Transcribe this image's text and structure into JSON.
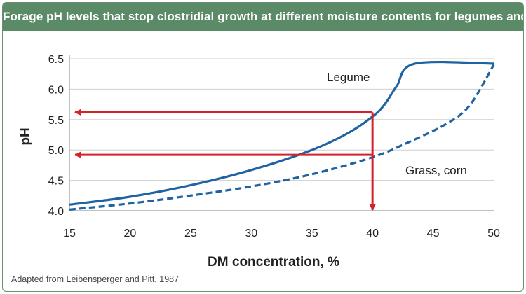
{
  "title": "Forage pH levels that stop clostridial growth at different moisture contents for legumes and grasses",
  "source": "Adapted from Leibensperger and Pitt, 1987",
  "colors": {
    "banner": "#5b8a67",
    "legume_line": "#1f63a3",
    "grass_line": "#1f63a3",
    "arrows": "#d2232a",
    "grid": "#cfcfcf"
  },
  "chart_data": {
    "type": "line",
    "xlabel": "DM concentration, %",
    "ylabel": "pH",
    "xlim": [
      15,
      50
    ],
    "ylim": [
      4.0,
      6.5
    ],
    "x_ticks": [
      "15",
      "20",
      "25",
      "30",
      "35",
      "40",
      "45",
      "50"
    ],
    "y_ticks": [
      "4.0",
      "4.5",
      "5.0",
      "5.5",
      "6.0",
      "6.5"
    ],
    "grid": "horizontal",
    "series": [
      {
        "name": "Legume",
        "style": "solid",
        "x": [
          15,
          20,
          25,
          30,
          35,
          38,
          40,
          41,
          42,
          43.5,
          50
        ],
        "y": [
          4.1,
          4.23,
          4.42,
          4.67,
          5.0,
          5.28,
          5.55,
          5.75,
          6.05,
          6.42,
          6.42
        ]
      },
      {
        "name": "Grass, corn",
        "style": "dashed",
        "x": [
          15,
          20,
          25,
          30,
          35,
          40,
          43,
          46,
          48,
          50
        ],
        "y": [
          4.02,
          4.12,
          4.25,
          4.4,
          4.6,
          4.88,
          5.13,
          5.42,
          5.73,
          6.4
        ]
      }
    ],
    "annotations": [
      {
        "type": "arrow",
        "from": [
          40,
          5.62
        ],
        "to": [
          15,
          5.62
        ],
        "color": "#d2232a"
      },
      {
        "type": "arrow",
        "from": [
          40,
          4.92
        ],
        "to": [
          15,
          4.92
        ],
        "color": "#d2232a"
      },
      {
        "type": "arrow",
        "from": [
          40,
          5.62
        ],
        "to": [
          40,
          4.0
        ],
        "color": "#d2232a"
      }
    ]
  }
}
